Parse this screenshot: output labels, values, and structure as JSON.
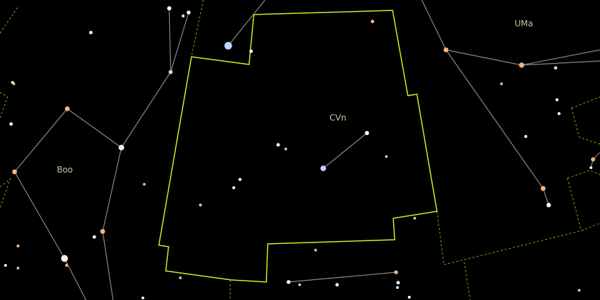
{
  "map": {
    "background": "#000000",
    "colors": {
      "highlight_boundary": "#d4f025",
      "other_boundary": "#c8d41e",
      "constellation_line": "#8a8a8a",
      "label": "#c8c8a0",
      "star_white": "#ffffff",
      "star_blue": "#c0d4ff",
      "star_orange": "#ffb27a",
      "star_pale": "#f4f0e6"
    },
    "selected_constellation": "CVn",
    "labels": [
      {
        "id": "cvn",
        "text": "CVn"
      },
      {
        "id": "boo",
        "text": "Boo"
      },
      {
        "id": "uma",
        "text": "UMa"
      }
    ]
  }
}
